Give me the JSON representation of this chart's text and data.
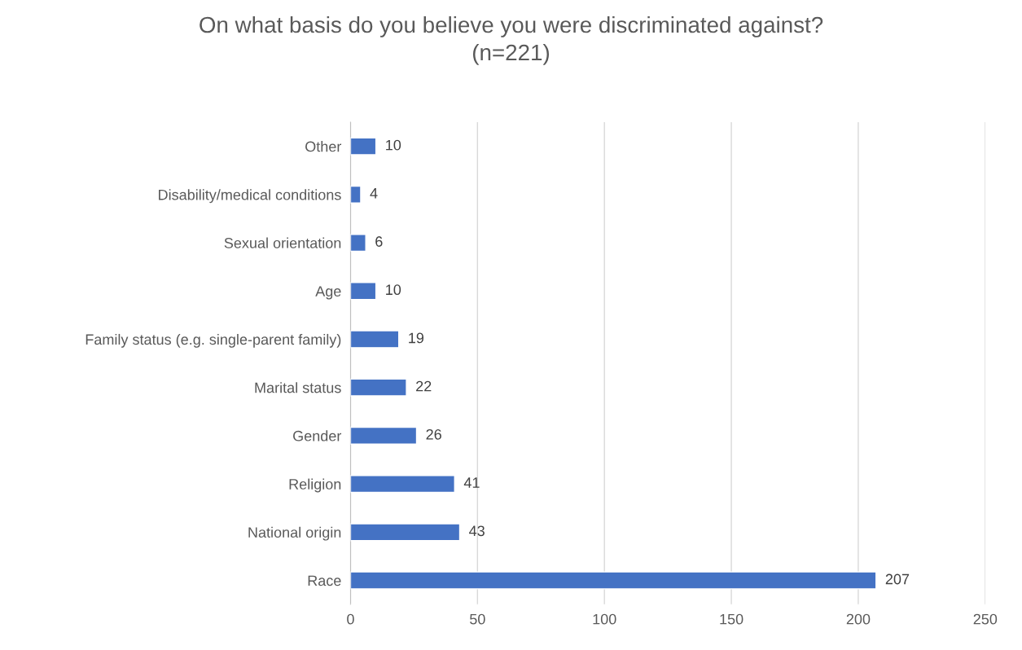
{
  "chart_data": {
    "type": "bar",
    "orientation": "horizontal",
    "title": "On what basis do you believe you were discriminated against?\n(n=221)",
    "categories": [
      "Other",
      "Disability/medical conditions",
      "Sexual orientation",
      "Age",
      "Family status (e.g. single-parent family)",
      "Marital status",
      "Gender",
      "Religion",
      "National origin",
      "Race"
    ],
    "values": [
      10,
      4,
      6,
      10,
      19,
      22,
      26,
      41,
      43,
      207
    ],
    "color": "#4472c4",
    "xlim": [
      0,
      250
    ],
    "xticks": [
      0,
      50,
      100,
      150,
      200,
      250
    ],
    "grid": "x",
    "data_labels": true
  }
}
